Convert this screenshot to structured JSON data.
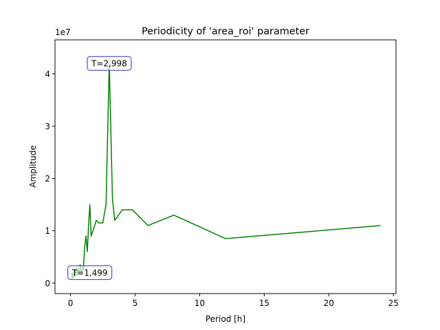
{
  "chart_data": {
    "type": "line",
    "title": "Periodicity of 'area_roi' parameter",
    "xlabel": "Period [h]",
    "ylabel": "Amplitude",
    "y_offset_label": "1e7",
    "xlim": [
      -1.2,
      25.2
    ],
    "ylim": [
      -0.2,
      4.65
    ],
    "x_ticks": [
      0,
      5,
      10,
      15,
      20,
      25
    ],
    "y_ticks": [
      0,
      1,
      2,
      3,
      4
    ],
    "grid": false,
    "series": [
      {
        "color": "#008000",
        "x": [
          0.1,
          0.15,
          0.2,
          0.3,
          0.35,
          0.45,
          0.5,
          0.6,
          0.7,
          0.75,
          0.85,
          0.95,
          1.0,
          1.1,
          1.2,
          1.3,
          1.4,
          1.499,
          1.6,
          1.8,
          2.0,
          2.2,
          2.5,
          2.75,
          2.998,
          3.25,
          3.43,
          4.0,
          4.8,
          6.0,
          8.0,
          12.0,
          24.0
        ],
        "y": [
          0.08,
          0.2,
          0.1,
          0.25,
          0.12,
          0.3,
          0.15,
          0.28,
          0.2,
          0.35,
          0.18,
          0.32,
          0.25,
          0.7,
          0.9,
          0.6,
          1.1,
          1.5,
          0.9,
          1.05,
          1.2,
          1.15,
          1.15,
          1.5,
          4.2,
          1.6,
          1.2,
          1.4,
          1.4,
          1.1,
          1.3,
          0.85,
          1.1
        ]
      }
    ],
    "annotations": [
      {
        "text": "T=2,998",
        "x": 2.998,
        "y": 4.2
      },
      {
        "text": "T=1,499",
        "x": 1.499,
        "y": 0.2
      }
    ]
  }
}
